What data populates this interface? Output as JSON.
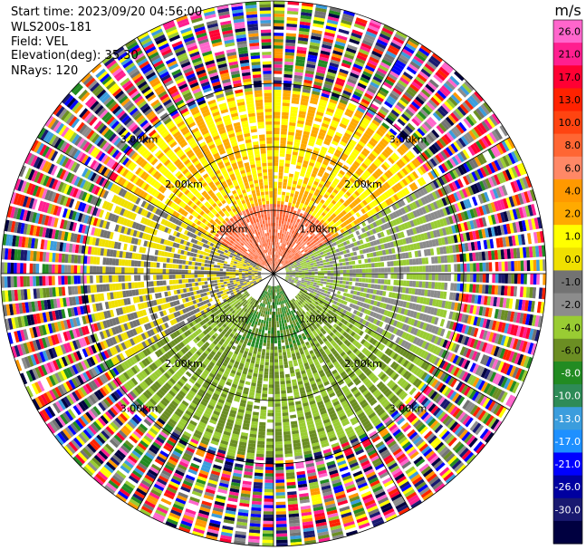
{
  "header": {
    "start_time": "Start time: 2023/09/20 04:56:00",
    "instrument": "WLS200s-181",
    "field": "Field: VEL",
    "elevation": "Elevation(deg): 35.30",
    "nrays": "NRays: 120"
  },
  "chart_data": {
    "type": "heatmap",
    "projection": "polar",
    "field": "VEL",
    "unit": "m/s",
    "nrays": 120,
    "range_rings": [
      {
        "label": "1.00km"
      },
      {
        "label": "2.00km"
      },
      {
        "label": "3.00km"
      }
    ],
    "colorbar": {
      "title": "m/s",
      "ticks": [
        "26.0",
        "21.0",
        "17.0",
        "13.0",
        "10.0",
        "8.0",
        "6.0",
        "4.0",
        "2.0",
        "1.0",
        "0.0",
        "-1.0",
        "-2.0",
        "-4.0",
        "-6.0",
        "-8.0",
        "-10.0",
        "-13.0",
        "-17.0",
        "-21.0",
        "-26.0",
        "-30.0"
      ],
      "colors": [
        "#ff66cc",
        "#ff1f8f",
        "#ff0033",
        "#ff2200",
        "#ff4411",
        "#ff6633",
        "#ff8866",
        "#ff9900",
        "#ffaa00",
        "#ffff00",
        "#f0e000",
        "#737373",
        "#8c8c8c",
        "#99cc33",
        "#6b8e23",
        "#228b22",
        "#2e8b57",
        "#3b9ddd",
        "#1e90ff",
        "#0000ff",
        "#0000a0",
        "#191970",
        "#000040"
      ]
    },
    "sectors": [
      {
        "range_km": [
          0.0,
          0.85
        ],
        "pattern": "mixed",
        "note": "near-field radial spikes"
      },
      {
        "azimuth_deg": [
          300,
          60
        ],
        "range_km": [
          0.0,
          1.1
        ],
        "value": 8.0
      },
      {
        "azimuth_deg": [
          300,
          60
        ],
        "range_km": [
          1.1,
          2.9
        ],
        "value": 2.0
      },
      {
        "azimuth_deg": [
          60,
          120
        ],
        "range_km": [
          0.2,
          2.9
        ],
        "value": -2.0
      },
      {
        "azimuth_deg": [
          120,
          240
        ],
        "range_km": [
          0.5,
          2.9
        ],
        "value": -4.0
      },
      {
        "azimuth_deg": [
          150,
          210
        ],
        "range_km": [
          0.2,
          1.2
        ],
        "value": -6.0
      },
      {
        "azimuth_deg": [
          240,
          300
        ],
        "range_km": [
          0.2,
          2.9
        ],
        "value": 0.0
      }
    ],
    "noise_range_km": [
      2.9,
      4.25
    ],
    "max_range_km": 4.3,
    "grid": true
  }
}
